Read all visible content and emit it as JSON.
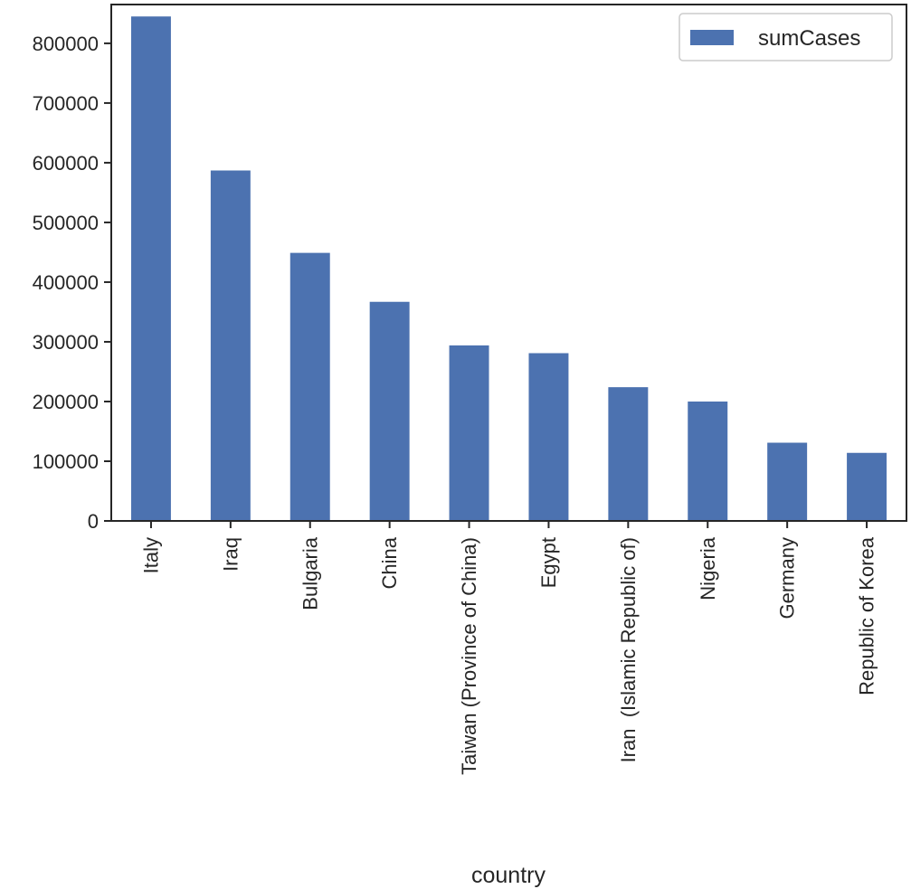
{
  "chart_data": {
    "type": "bar",
    "title": "",
    "xlabel": "country",
    "ylabel": "",
    "categories": [
      "Italy",
      "Iraq",
      "Bulgaria",
      "China",
      "Taiwan (Province of China)",
      "Egypt",
      "Iran  (Islamic Republic of)",
      "Nigeria",
      "Germany",
      "Republic of Korea"
    ],
    "series": [
      {
        "name": "sumCases",
        "values": [
          845000,
          587000,
          449000,
          367000,
          294000,
          281000,
          224000,
          200000,
          131000,
          114000
        ]
      }
    ],
    "yticks": [
      0,
      100000,
      200000,
      300000,
      400000,
      500000,
      600000,
      700000,
      800000
    ],
    "ylim": [
      0,
      865000
    ],
    "grid": false,
    "legend_position": "top-right",
    "colors": {
      "bar": "#4c72b0",
      "axis": "#262626"
    }
  }
}
